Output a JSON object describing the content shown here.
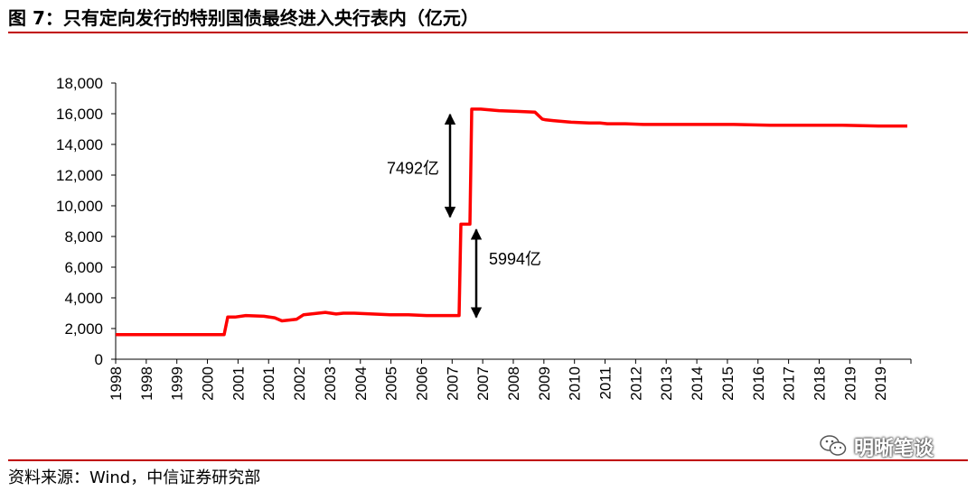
{
  "title": "图 7：只有定向发行的特别国债最终进入央行表内（亿元）",
  "source": "资料来源：Wind，中信证券研究部",
  "watermark": "明晰笔谈",
  "colors": {
    "accent": "#c00000",
    "series": "#ff0000",
    "axis": "#000000"
  },
  "chart_data": {
    "type": "line",
    "title": "",
    "xlabel": "",
    "ylabel": "",
    "ylim": [
      0,
      18000
    ],
    "yticks": [
      "0",
      "2,000",
      "4,000",
      "6,000",
      "8,000",
      "10,000",
      "12,000",
      "14,000",
      "16,000",
      "18,000"
    ],
    "xtick_labels": [
      "1998",
      "1998",
      "1999",
      "2000",
      "2001",
      "2001",
      "2002",
      "2003",
      "2004",
      "2005",
      "2006",
      "2007",
      "2007",
      "2008",
      "2009",
      "2010",
      "2011",
      "2012",
      "2013",
      "2014",
      "2015",
      "2016",
      "2017",
      "2018",
      "2019",
      "2019"
    ],
    "grid": false,
    "legend": "none",
    "series": [
      {
        "x": [
          1997.9,
          1998.9,
          2000.9,
          2001.0,
          2001.2,
          2001.5,
          2002.0,
          2002.3,
          2002.5,
          2002.9,
          2003.1,
          2003.5,
          2003.7,
          2004.0,
          2004.2,
          2004.5,
          2005.0,
          2005.5,
          2006.0,
          2006.5,
          2007.0,
          2007.4,
          2007.45,
          2007.55,
          2007.7,
          2007.75,
          2008.0,
          2008.5,
          2009.0,
          2009.5,
          2009.7,
          2009.8,
          2010.0,
          2010.5,
          2011.0,
          2011.3,
          2011.5,
          2012.0,
          2012.5,
          2013.0,
          2014.0,
          2015.0,
          2016.0,
          2017.0,
          2018.0,
          2019.0,
          2019.8
        ],
        "y": [
          1600,
          1600,
          1600,
          2750,
          2750,
          2850,
          2800,
          2700,
          2500,
          2600,
          2900,
          3000,
          3050,
          2950,
          3000,
          3000,
          2950,
          2900,
          2900,
          2850,
          2850,
          2850,
          8800,
          8800,
          8800,
          16300,
          16300,
          16200,
          16150,
          16100,
          15650,
          15600,
          15550,
          15450,
          15400,
          15400,
          15350,
          15350,
          15300,
          15300,
          15300,
          15300,
          15250,
          15250,
          15250,
          15200,
          15200
        ]
      }
    ],
    "annotations": [
      {
        "text": "7492亿",
        "from": 8800,
        "to": 16300
      },
      {
        "text": "5994亿",
        "from": 2850,
        "to": 8800
      }
    ]
  }
}
